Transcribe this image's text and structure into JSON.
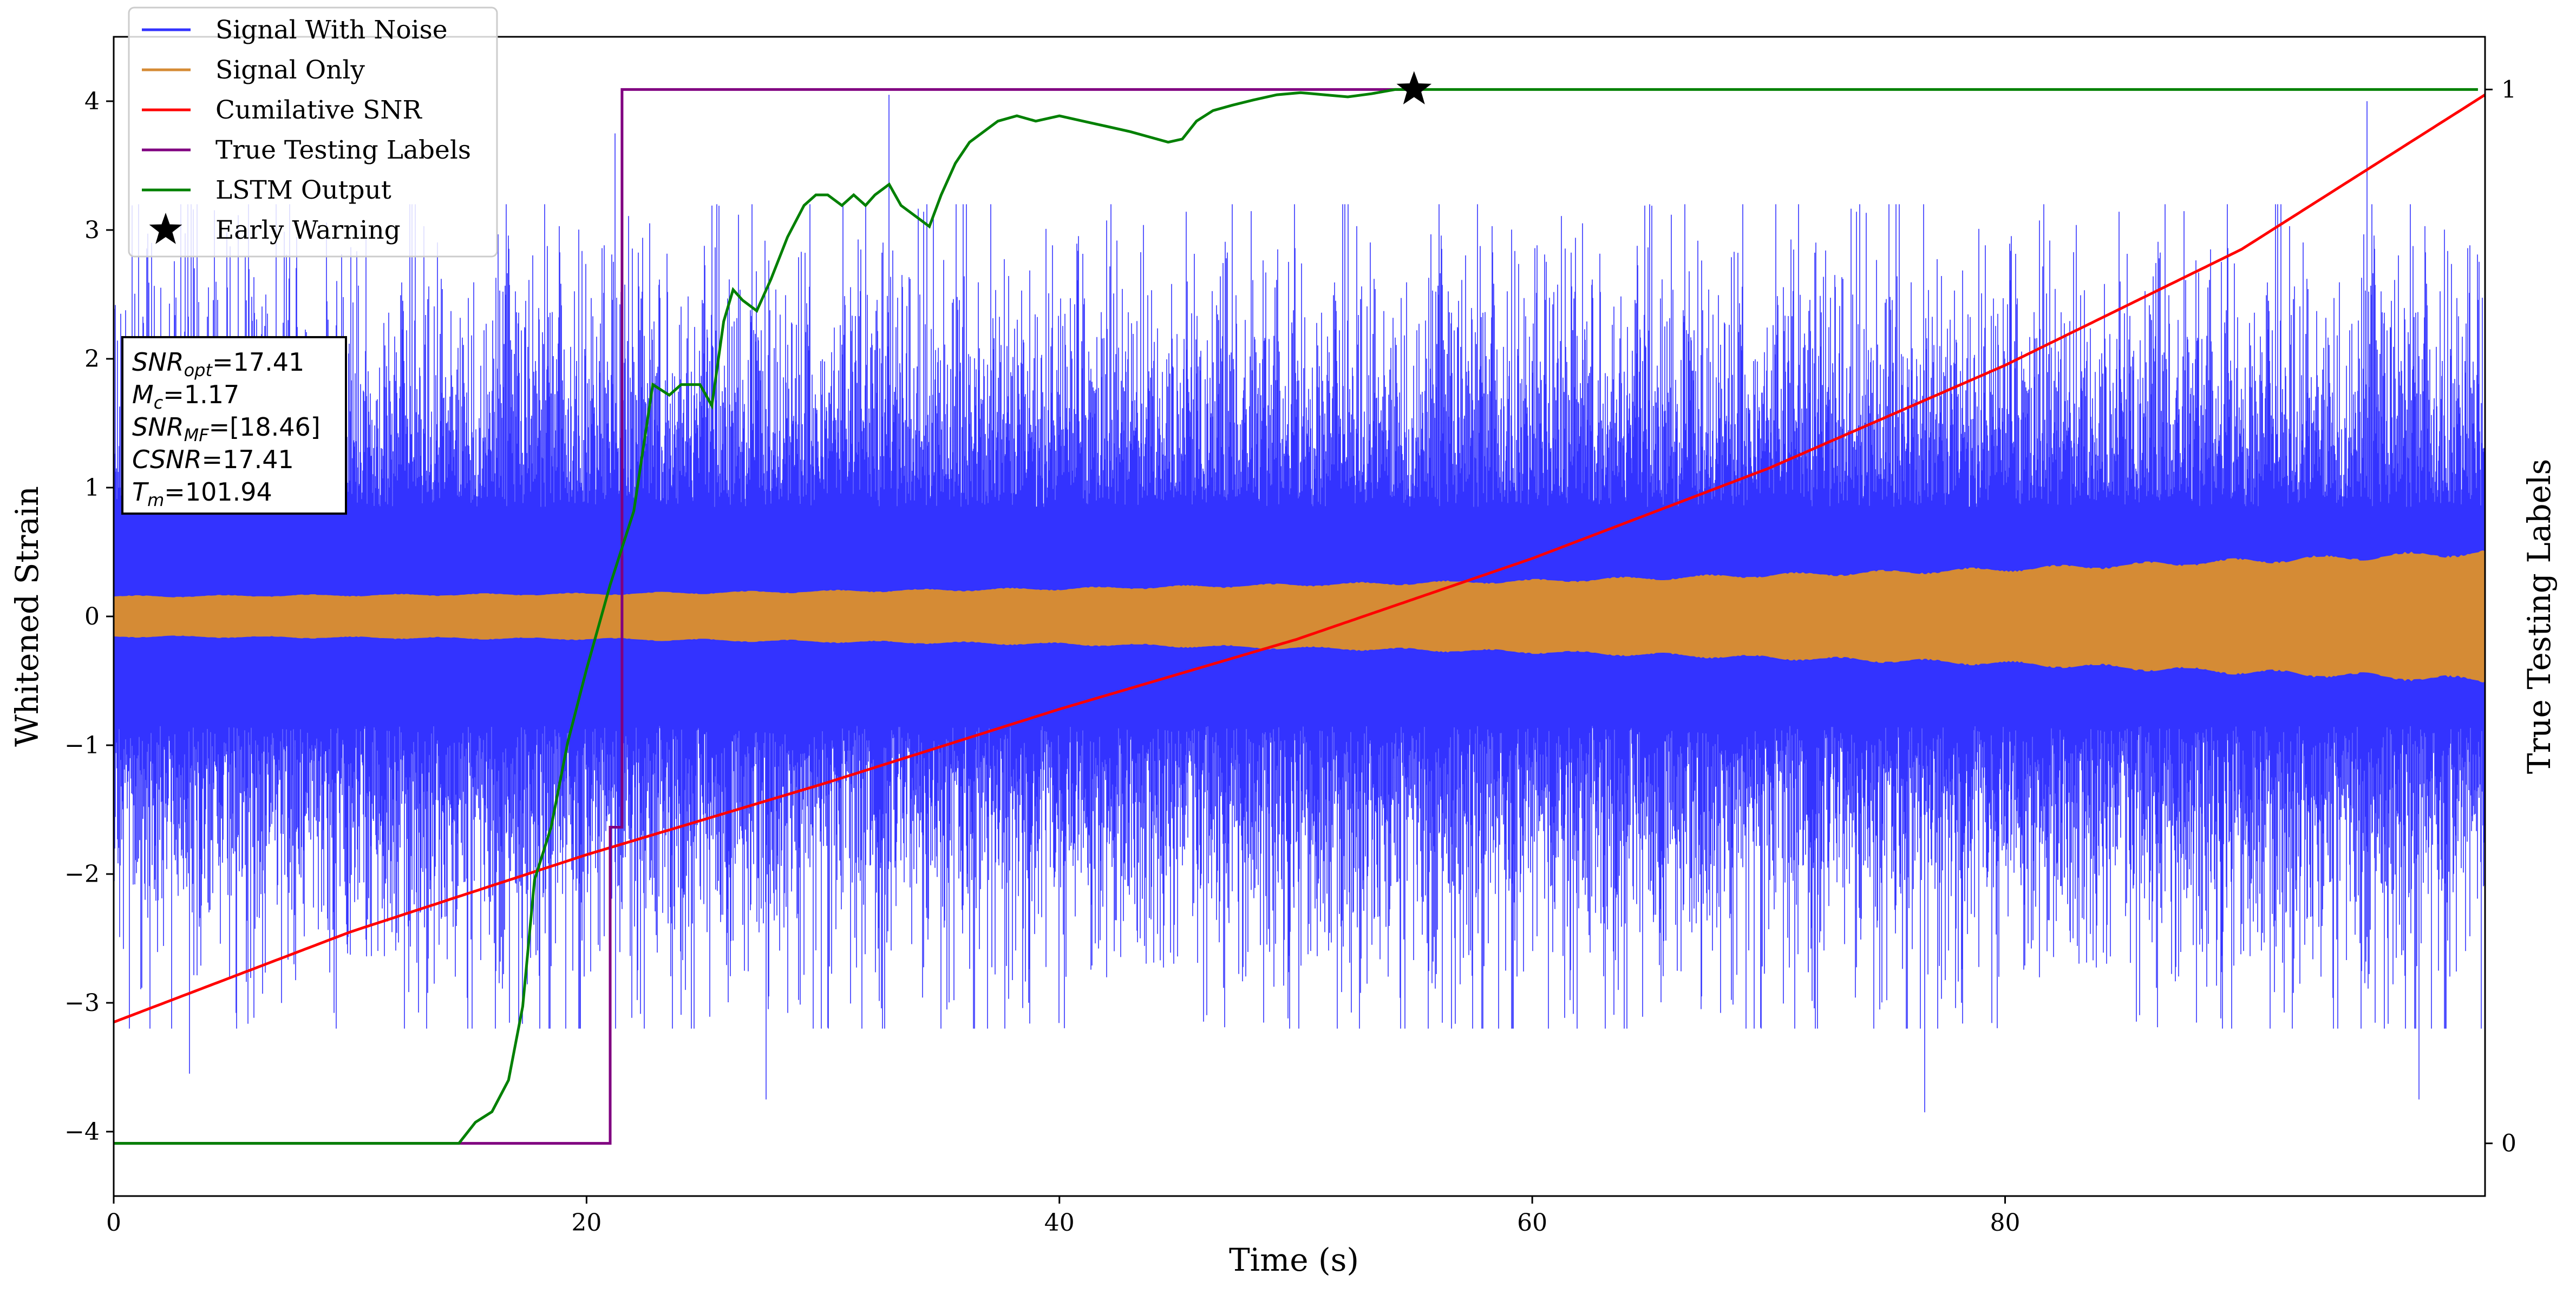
{
  "chart_data": {
    "type": "line",
    "xlabel": "Time (s)",
    "ylabel": "Whitened Strain",
    "y2label": "True Testing Labels",
    "xlim": [
      0,
      100.3
    ],
    "ylim": [
      -4.5,
      4.5
    ],
    "y2lim": [
      -0.05,
      1.05
    ],
    "x_ticks": [
      {
        "value": 0,
        "label": "0"
      },
      {
        "value": 20,
        "label": "20"
      },
      {
        "value": 40,
        "label": "40"
      },
      {
        "value": 60,
        "label": "60"
      },
      {
        "value": 80,
        "label": "80"
      }
    ],
    "y_ticks": [
      {
        "value": -4,
        "label": "−4"
      },
      {
        "value": -3,
        "label": "−3"
      },
      {
        "value": -2,
        "label": "−2"
      },
      {
        "value": -1,
        "label": "−1"
      },
      {
        "value": 0,
        "label": "0"
      },
      {
        "value": 1,
        "label": "1"
      },
      {
        "value": 2,
        "label": "2"
      },
      {
        "value": 3,
        "label": "3"
      },
      {
        "value": 4,
        "label": "4"
      }
    ],
    "y2_ticks": [
      {
        "value": 0,
        "label": "0"
      },
      {
        "value": 1,
        "label": "1"
      }
    ],
    "legend_position": "top-left",
    "grid": false,
    "series": [
      {
        "name": "Signal With Noise",
        "color": "#3333ff",
        "axis": "left",
        "style": "dense-noise",
        "typical_range": [
          -2.6,
          2.6
        ],
        "notable_spikes": [
          [
            1.6,
            2.9
          ],
          [
            3.2,
            -3.55
          ],
          [
            20.5,
            -2.55
          ],
          [
            21.2,
            3.75
          ],
          [
            27.6,
            -3.75
          ],
          [
            32.8,
            4.05
          ],
          [
            76.6,
            -3.85
          ],
          [
            95.3,
            4.0
          ],
          [
            97.5,
            -3.75
          ]
        ]
      },
      {
        "name": "Signal Only",
        "color": "#d58b35",
        "axis": "left",
        "style": "envelope",
        "x": [
          0,
          20,
          40,
          60,
          80,
          100.3
        ],
        "amplitude": [
          0.15,
          0.17,
          0.21,
          0.27,
          0.36,
          0.49
        ]
      },
      {
        "name": "Cumilative SNR",
        "color": "#ff0000",
        "axis": "left",
        "x": [
          0,
          10,
          20,
          30,
          40,
          50,
          60,
          70,
          80,
          90,
          100.3
        ],
        "y": [
          -3.15,
          -2.45,
          -1.85,
          -1.3,
          -0.72,
          -0.18,
          0.45,
          1.15,
          1.95,
          2.85,
          4.05
        ]
      },
      {
        "name": "True Testing Labels",
        "color": "#800080",
        "axis": "right",
        "x": [
          0,
          21.0,
          21.0,
          21.5,
          21.5,
          55
        ],
        "y": [
          0,
          0,
          0.3,
          0.3,
          1,
          1
        ]
      },
      {
        "name": "LSTM Output",
        "color": "#008000",
        "axis": "right",
        "x": [
          0,
          14.6,
          15.3,
          16.0,
          16.7,
          17.3,
          17.8,
          18.5,
          19.2,
          20.0,
          21.0,
          22.0,
          22.8,
          23.5,
          24.0,
          24.8,
          25.3,
          25.8,
          26.2,
          26.6,
          27.2,
          27.8,
          28.5,
          29.2,
          29.7,
          30.2,
          30.8,
          31.3,
          31.8,
          32.2,
          32.8,
          33.3,
          33.9,
          34.5,
          35.0,
          35.6,
          36.2,
          36.8,
          37.4,
          38.2,
          39.0,
          40.0,
          41.0,
          42.0,
          43.0,
          43.8,
          44.6,
          45.2,
          45.8,
          46.5,
          47.3,
          48.2,
          49.2,
          50.2,
          51.2,
          52.2,
          53.2,
          54.2,
          55.0,
          60,
          70,
          80,
          90,
          100
        ],
        "y": [
          0,
          0,
          0.02,
          0.03,
          0.06,
          0.13,
          0.25,
          0.3,
          0.38,
          0.45,
          0.53,
          0.6,
          0.72,
          0.71,
          0.72,
          0.72,
          0.7,
          0.78,
          0.81,
          0.8,
          0.79,
          0.82,
          0.86,
          0.89,
          0.9,
          0.9,
          0.89,
          0.9,
          0.89,
          0.9,
          0.91,
          0.89,
          0.88,
          0.87,
          0.9,
          0.93,
          0.95,
          0.96,
          0.97,
          0.975,
          0.97,
          0.975,
          0.97,
          0.965,
          0.96,
          0.955,
          0.95,
          0.953,
          0.97,
          0.98,
          0.985,
          0.99,
          0.995,
          0.997,
          0.995,
          0.993,
          0.996,
          1.0,
          1.0,
          1.0,
          1.0,
          1.0,
          1.0,
          1.0
        ]
      },
      {
        "name": "Early Warning",
        "color": "#000000",
        "axis": "right",
        "marker": "star",
        "x": [
          55.0
        ],
        "y": [
          1.0
        ]
      }
    ],
    "info_box": {
      "snr_opt_sym": "SNR",
      "snr_opt_sub": "opt",
      "snr_opt_val": "=17.41",
      "mc_sym": "M",
      "mc_sub": "c",
      "mc_val": "=1.17",
      "snr_mf_sym": "SNR",
      "snr_mf_sub": "MF",
      "snr_mf_val": "=[18.46]",
      "csnr_sym": "CSNR",
      "csnr_val": "=17.41",
      "tm_sym": "T",
      "tm_sub": "m",
      "tm_val": "=101.94"
    }
  }
}
